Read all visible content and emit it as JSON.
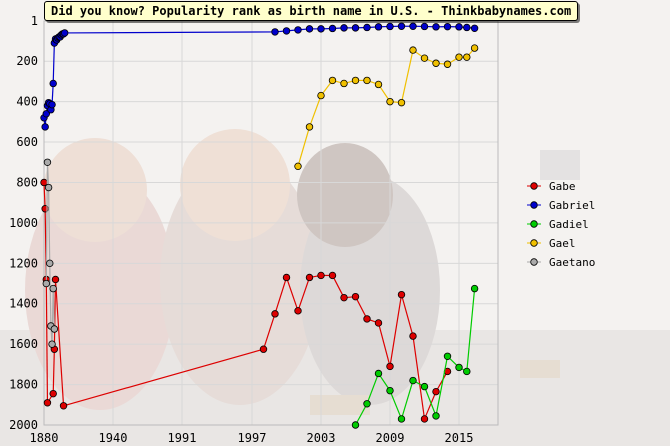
{
  "title": "Did you know? Popularity rank as birth name in U.S. - Thinkbabynames.com",
  "chart_data": {
    "type": "line",
    "title": "Did you know? Popularity rank as birth name in U.S. - Thinkbabynames.com",
    "xlabel": "",
    "ylabel": "",
    "xlim": [
      1880,
      2020
    ],
    "ylim": [
      2000,
      1
    ],
    "y_inverted": true,
    "x_ticks": [
      1880,
      1940,
      1991,
      1997,
      2003,
      2009,
      2015
    ],
    "y_ticks": [
      1,
      200,
      400,
      600,
      800,
      1000,
      1200,
      1400,
      1600,
      1800,
      2000
    ],
    "grid": true,
    "legend_position": "right",
    "series": [
      {
        "name": "Gabe",
        "color": "#dd0000",
        "points": [
          [
            1880,
            800
          ],
          [
            1881,
            930
          ],
          [
            1882,
            1280
          ],
          [
            1883,
            1890
          ],
          [
            1888,
            1845
          ],
          [
            1889,
            1625
          ],
          [
            1890,
            1280
          ],
          [
            1897,
            1905
          ],
          [
            1998,
            1625
          ],
          [
            1999,
            1450
          ],
          [
            2000,
            1270
          ],
          [
            2001,
            1435
          ],
          [
            2002,
            1270
          ],
          [
            2003,
            1260
          ],
          [
            2004,
            1260
          ],
          [
            2005,
            1370
          ],
          [
            2006,
            1365
          ],
          [
            2007,
            1475
          ],
          [
            2008,
            1495
          ],
          [
            2009,
            1710
          ],
          [
            2010,
            1355
          ],
          [
            2011,
            1560
          ],
          [
            2012,
            1970
          ],
          [
            2013,
            1835
          ],
          [
            2014,
            1735
          ]
        ]
      },
      {
        "name": "Gabriel",
        "color": "#0000cc",
        "points": [
          [
            1880,
            480
          ],
          [
            1881,
            525
          ],
          [
            1882,
            460
          ],
          [
            1883,
            420
          ],
          [
            1884,
            405
          ],
          [
            1885,
            410
          ],
          [
            1886,
            440
          ],
          [
            1887,
            415
          ],
          [
            1888,
            310
          ],
          [
            1889,
            110
          ],
          [
            1890,
            90
          ],
          [
            1891,
            95
          ],
          [
            1892,
            85
          ],
          [
            1893,
            80
          ],
          [
            1894,
            80
          ],
          [
            1895,
            70
          ],
          [
            1896,
            65
          ],
          [
            1897,
            65
          ],
          [
            1898,
            60
          ],
          [
            1999,
            55
          ],
          [
            2000,
            50
          ],
          [
            2001,
            45
          ],
          [
            2002,
            40
          ],
          [
            2003,
            40
          ],
          [
            2004,
            38
          ],
          [
            2005,
            35
          ],
          [
            2006,
            35
          ],
          [
            2007,
            33
          ],
          [
            2008,
            30
          ],
          [
            2009,
            28
          ],
          [
            2010,
            27
          ],
          [
            2011,
            27
          ],
          [
            2012,
            28
          ],
          [
            2013,
            30
          ],
          [
            2014,
            29
          ],
          [
            2015,
            30
          ],
          [
            2016,
            33
          ],
          [
            2017,
            37
          ]
        ]
      },
      {
        "name": "Gadiel",
        "color": "#00cc00",
        "points": [
          [
            2006,
            2000
          ],
          [
            2007,
            1895
          ],
          [
            2008,
            1745
          ],
          [
            2009,
            1830
          ],
          [
            2010,
            1970
          ],
          [
            2011,
            1780
          ],
          [
            2012,
            1810
          ],
          [
            2013,
            1955
          ],
          [
            2014,
            1660
          ],
          [
            2015,
            1715
          ],
          [
            2016,
            1735
          ],
          [
            2017,
            1325
          ]
        ]
      },
      {
        "name": "Gael",
        "color": "#f0c000",
        "points": [
          [
            2001,
            720
          ],
          [
            2002,
            525
          ],
          [
            2003,
            370
          ],
          [
            2004,
            295
          ],
          [
            2005,
            310
          ],
          [
            2006,
            295
          ],
          [
            2007,
            295
          ],
          [
            2008,
            315
          ],
          [
            2009,
            400
          ],
          [
            2010,
            405
          ],
          [
            2011,
            145
          ],
          [
            2012,
            185
          ],
          [
            2013,
            210
          ],
          [
            2014,
            215
          ],
          [
            2015,
            180
          ],
          [
            2016,
            180
          ],
          [
            2017,
            135
          ]
        ]
      },
      {
        "name": "Gaetano",
        "color": "#aaaaaa",
        "points": [
          [
            1882,
            1300
          ],
          [
            1883,
            700
          ],
          [
            1884,
            825
          ],
          [
            1885,
            1200
          ],
          [
            1886,
            1510
          ],
          [
            1887,
            1600
          ],
          [
            1888,
            1325
          ],
          [
            1889,
            1525
          ]
        ]
      }
    ]
  }
}
